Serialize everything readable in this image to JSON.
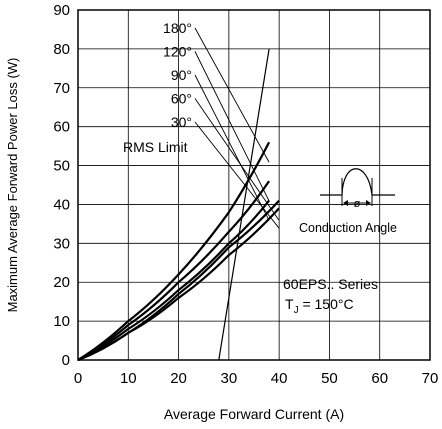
{
  "chart_data": {
    "type": "line",
    "title": "",
    "xlabel": "Average Forward Current (A)",
    "ylabel": "Maximum Average Forward Power Loss (W)",
    "xlim": [
      0,
      70
    ],
    "ylim": [
      0,
      90
    ],
    "xticks": [
      "0",
      "10",
      "20",
      "30",
      "40",
      "50",
      "60",
      "70"
    ],
    "yticks": [
      "0",
      "10",
      "20",
      "30",
      "40",
      "50",
      "60",
      "70",
      "80",
      "90"
    ],
    "grid": true,
    "series": [
      {
        "name": "180°",
        "x": [
          0,
          10,
          20,
          30,
          38
        ],
        "y": [
          0,
          10,
          22,
          38,
          56
        ]
      },
      {
        "name": "120°",
        "x": [
          0,
          10,
          20,
          30,
          38
        ],
        "y": [
          0,
          9,
          20,
          33,
          46
        ]
      },
      {
        "name": "90°",
        "x": [
          0,
          10,
          20,
          30,
          38
        ],
        "y": [
          0,
          8,
          18,
          30,
          41
        ]
      },
      {
        "name": "60°",
        "x": [
          0,
          10,
          20,
          30,
          40
        ],
        "y": [
          0,
          7,
          17,
          29,
          41
        ]
      },
      {
        "name": "30°",
        "x": [
          0,
          10,
          20,
          30,
          40
        ],
        "y": [
          0,
          7,
          16,
          27,
          39
        ]
      },
      {
        "name": "RMS Limit",
        "x": [
          28,
          38
        ],
        "y": [
          0,
          80
        ]
      }
    ],
    "annotations": {
      "conduction_angle": "Conduction Angle",
      "phi": "ø",
      "series_note": "60EPS.. Series",
      "tj_label": "T",
      "tj_sub": "J",
      "tj_value": " = 150°C"
    }
  }
}
